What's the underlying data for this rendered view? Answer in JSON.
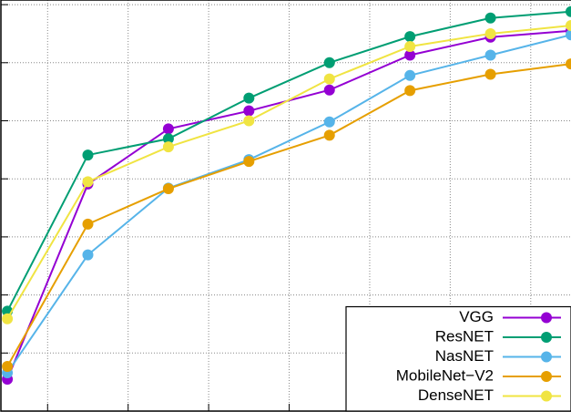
{
  "chart_data": {
    "type": "line",
    "x": [
      0,
      1,
      2,
      3,
      4,
      5,
      6,
      7
    ],
    "xlim": [
      -0.08,
      7
    ],
    "xticks": [
      0.5,
      1.5,
      2.5,
      3.5,
      4.5,
      5.5,
      6.5
    ],
    "ylim": [
      0,
      7.08
    ],
    "yticks": [
      1,
      2,
      3,
      4,
      5,
      6,
      7
    ],
    "grid": true,
    "legend": "bottom right",
    "series": [
      {
        "name": "VGG",
        "color": "#9400d3",
        "values": [
          0.55,
          3.91,
          4.86,
          5.17,
          5.53,
          6.13,
          6.44,
          6.55
        ]
      },
      {
        "name": "ResNET",
        "color": "#009e73",
        "values": [
          1.72,
          4.41,
          4.69,
          5.39,
          6.0,
          6.45,
          6.77,
          6.88
        ]
      },
      {
        "name": "NasNET",
        "color": "#56b4e9",
        "values": [
          0.66,
          2.69,
          3.84,
          4.33,
          4.98,
          5.78,
          6.13,
          6.48
        ]
      },
      {
        "name": "MobileNet−V2",
        "color": "#e69f00",
        "values": [
          0.77,
          3.22,
          3.83,
          4.3,
          4.75,
          5.52,
          5.8,
          5.98
        ]
      },
      {
        "name": "DenseNET",
        "color": "#f0e442",
        "values": [
          1.59,
          3.95,
          4.55,
          5.0,
          5.72,
          6.28,
          6.5,
          6.64
        ]
      }
    ]
  }
}
